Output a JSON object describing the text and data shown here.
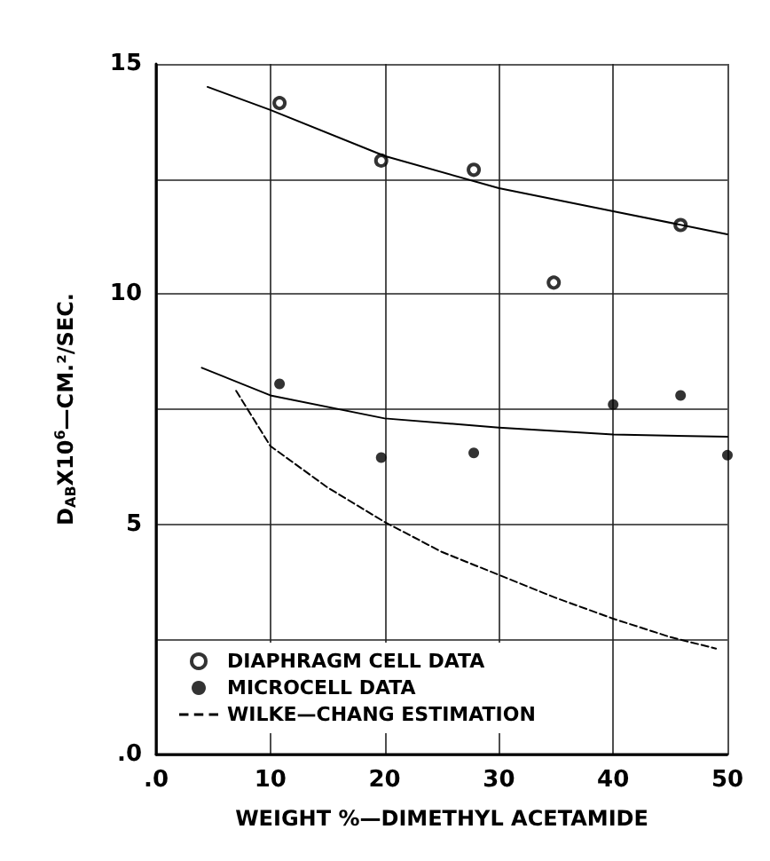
{
  "chart_data": {
    "type": "scatter",
    "xlabel": "WEIGHT %—DIMETHYL ACETAMIDE",
    "ylabel": "D$_{AB}$X10$^{6}$—CM.²/SEC.",
    "xlim": [
      0,
      50
    ],
    "xticks": [
      {
        "value": 0,
        "label": ".0"
      },
      10,
      20,
      30,
      40,
      50
    ],
    "ylim": [
      0,
      15
    ],
    "yticks": [
      {
        "value": 0,
        "label": ".0"
      },
      {
        "value": 2.5,
        "label": null
      },
      5,
      {
        "value": 7.5,
        "label": null
      },
      10,
      {
        "value": 12.5,
        "label": null
      },
      15
    ],
    "grid": true,
    "legend": "bottom left",
    "series": [
      {
        "name": "DIAPHRAGM CELL DATA",
        "marker": "circle-open",
        "color": "#000000",
        "x": [
          10.8,
          19.7,
          27.8,
          34.8,
          45.9
        ],
        "values": [
          14.15,
          12.9,
          12.7,
          10.25,
          11.5
        ]
      },
      {
        "name": "MICROCELL DATA",
        "marker": "circle",
        "color": "#000000",
        "x": [
          10.8,
          19.7,
          27.8,
          40,
          45.9,
          50
        ],
        "values": [
          8.05,
          6.45,
          6.55,
          7.6,
          7.8,
          6.5
        ]
      },
      {
        "name": "WILKE—CHANG ESTIMATION",
        "type": "line",
        "line_style": "dashed",
        "marker": "none",
        "color": "#000000",
        "x": [
          7,
          10,
          15,
          20,
          25,
          30,
          35,
          40,
          45,
          49
        ],
        "values": [
          7.9,
          6.7,
          5.8,
          5.05,
          4.4,
          3.9,
          3.4,
          2.95,
          2.55,
          2.3
        ]
      },
      {
        "type": "line",
        "line_style": "solid",
        "marker": "none",
        "color": "#000000",
        "x": [
          4.5,
          10,
          20,
          30,
          40,
          50
        ],
        "values": [
          14.5,
          14.0,
          13.0,
          12.3,
          11.8,
          11.3
        ]
      },
      {
        "type": "line",
        "line_style": "solid",
        "marker": "none",
        "color": "#000000",
        "x": [
          4,
          10,
          20,
          30,
          40,
          50
        ],
        "values": [
          8.4,
          7.8,
          7.3,
          7.1,
          6.95,
          6.9
        ]
      }
    ]
  }
}
